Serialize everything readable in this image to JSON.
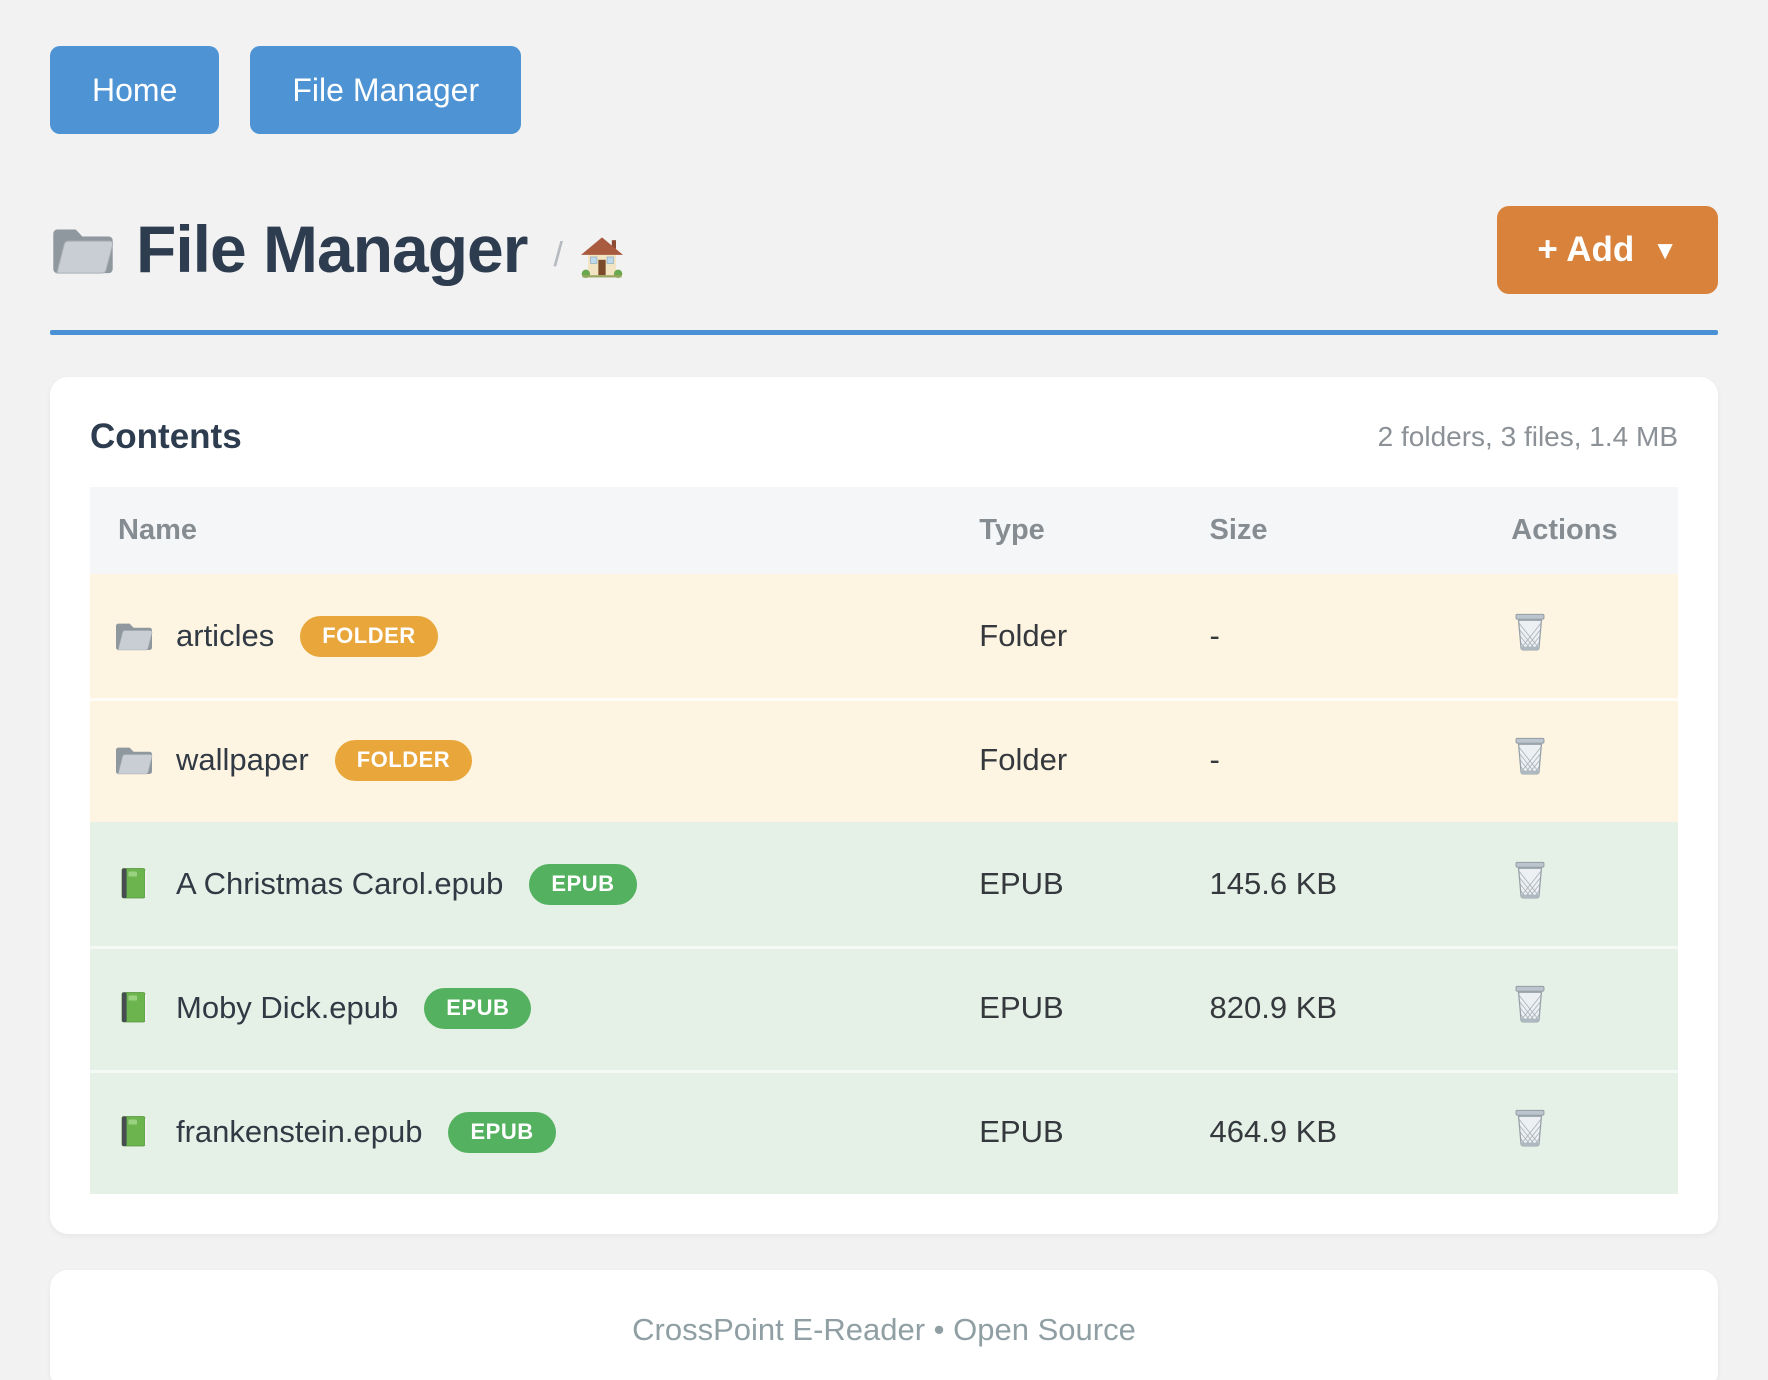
{
  "nav": {
    "home_label": "Home",
    "file_manager_label": "File Manager"
  },
  "header": {
    "title": "File Manager",
    "title_icon": "folder-icon",
    "breadcrumb_separator": "/",
    "breadcrumb_home_icon": "house-icon",
    "add_button_label": "+ Add",
    "add_button_caret": "▼"
  },
  "contents_card": {
    "heading": "Contents",
    "summary": "2 folders, 3 files, 1.4 MB",
    "table": {
      "columns": [
        "Name",
        "Type",
        "Size",
        "Actions"
      ],
      "rows": [
        {
          "name": "articles",
          "icon": "folder-icon",
          "kind": "folder",
          "badge": "FOLDER",
          "type": "Folder",
          "size": "-",
          "action_icon": "trash-icon"
        },
        {
          "name": "wallpaper",
          "icon": "folder-icon",
          "kind": "folder",
          "badge": "FOLDER",
          "type": "Folder",
          "size": "-",
          "action_icon": "trash-icon"
        },
        {
          "name": "A Christmas Carol.epub",
          "icon": "book-icon",
          "kind": "epub",
          "badge": "EPUB",
          "type": "EPUB",
          "size": "145.6 KB",
          "action_icon": "trash-icon"
        },
        {
          "name": "Moby Dick.epub",
          "icon": "book-icon",
          "kind": "epub",
          "badge": "EPUB",
          "type": "EPUB",
          "size": "820.9 KB",
          "action_icon": "trash-icon"
        },
        {
          "name": "frankenstein.epub",
          "icon": "book-icon",
          "kind": "epub",
          "badge": "EPUB",
          "type": "EPUB",
          "size": "464.9 KB",
          "action_icon": "trash-icon"
        }
      ]
    }
  },
  "footer": {
    "text": "CrossPoint E-Reader • Open Source"
  },
  "colors": {
    "page_bg": "#f2f2f3",
    "accent_blue": "#4a90d5",
    "button_blue": "#4e93d3",
    "button_orange": "#d8823c",
    "badge_folder": "#e8a63b",
    "badge_epub": "#54b15f",
    "row_folder_bg": "#fdf5e1",
    "row_epub_bg": "#e5f1e6",
    "table_head_bg": "#f5f6f8",
    "heading": "#2d3c4e",
    "muted": "#8b9196",
    "footer_text": "#8f9fa3"
  }
}
